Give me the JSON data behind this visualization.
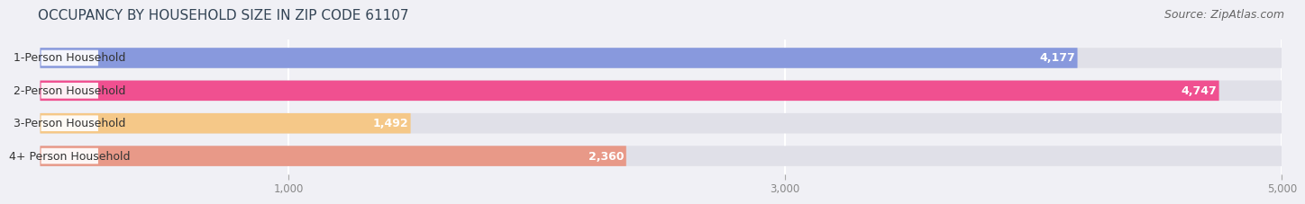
{
  "title": "OCCUPANCY BY HOUSEHOLD SIZE IN ZIP CODE 61107",
  "source": "Source: ZipAtlas.com",
  "categories": [
    "1-Person Household",
    "2-Person Household",
    "3-Person Household",
    "4+ Person Household"
  ],
  "values": [
    4177,
    4747,
    1492,
    2360
  ],
  "bar_colors": [
    "#8899dd",
    "#f05090",
    "#f5c888",
    "#e89988"
  ],
  "background_color": "#f0f0f5",
  "bar_bg_color": "#e0e0e8",
  "xlim": [
    0,
    5000
  ],
  "xticks": [
    1000,
    3000,
    5000
  ],
  "title_fontsize": 11,
  "source_fontsize": 9,
  "bar_height": 0.62,
  "bar_label_fontsize": 9,
  "value_fontsize": 9
}
